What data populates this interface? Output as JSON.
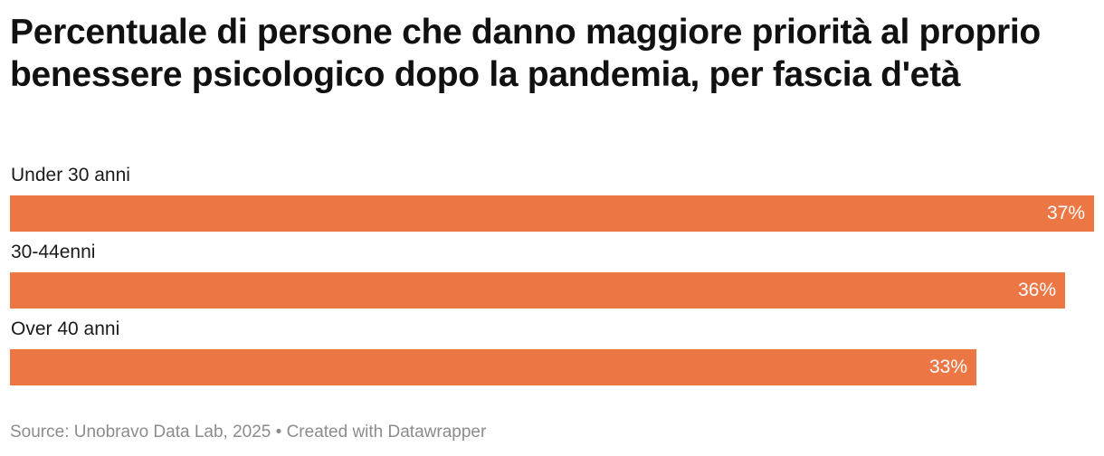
{
  "chart_data": {
    "type": "bar",
    "orientation": "horizontal",
    "title": "Percentuale di persone che danno maggiore priorità al proprio benessere psicologico dopo la pandemia, per fascia d'età",
    "categories": [
      "Under 30 anni",
      "30-44enni",
      "Over 40 anni"
    ],
    "values": [
      37,
      36,
      33
    ],
    "value_labels": [
      "37%",
      "36%",
      "33%"
    ],
    "unit": "%",
    "xlim": [
      0,
      37
    ],
    "grid": false,
    "legend": "none",
    "bar_color": "#ed7645",
    "source": "Source: Unobravo Data Lab, 2025",
    "separator": "•",
    "credit": "Created with Datawrapper"
  }
}
